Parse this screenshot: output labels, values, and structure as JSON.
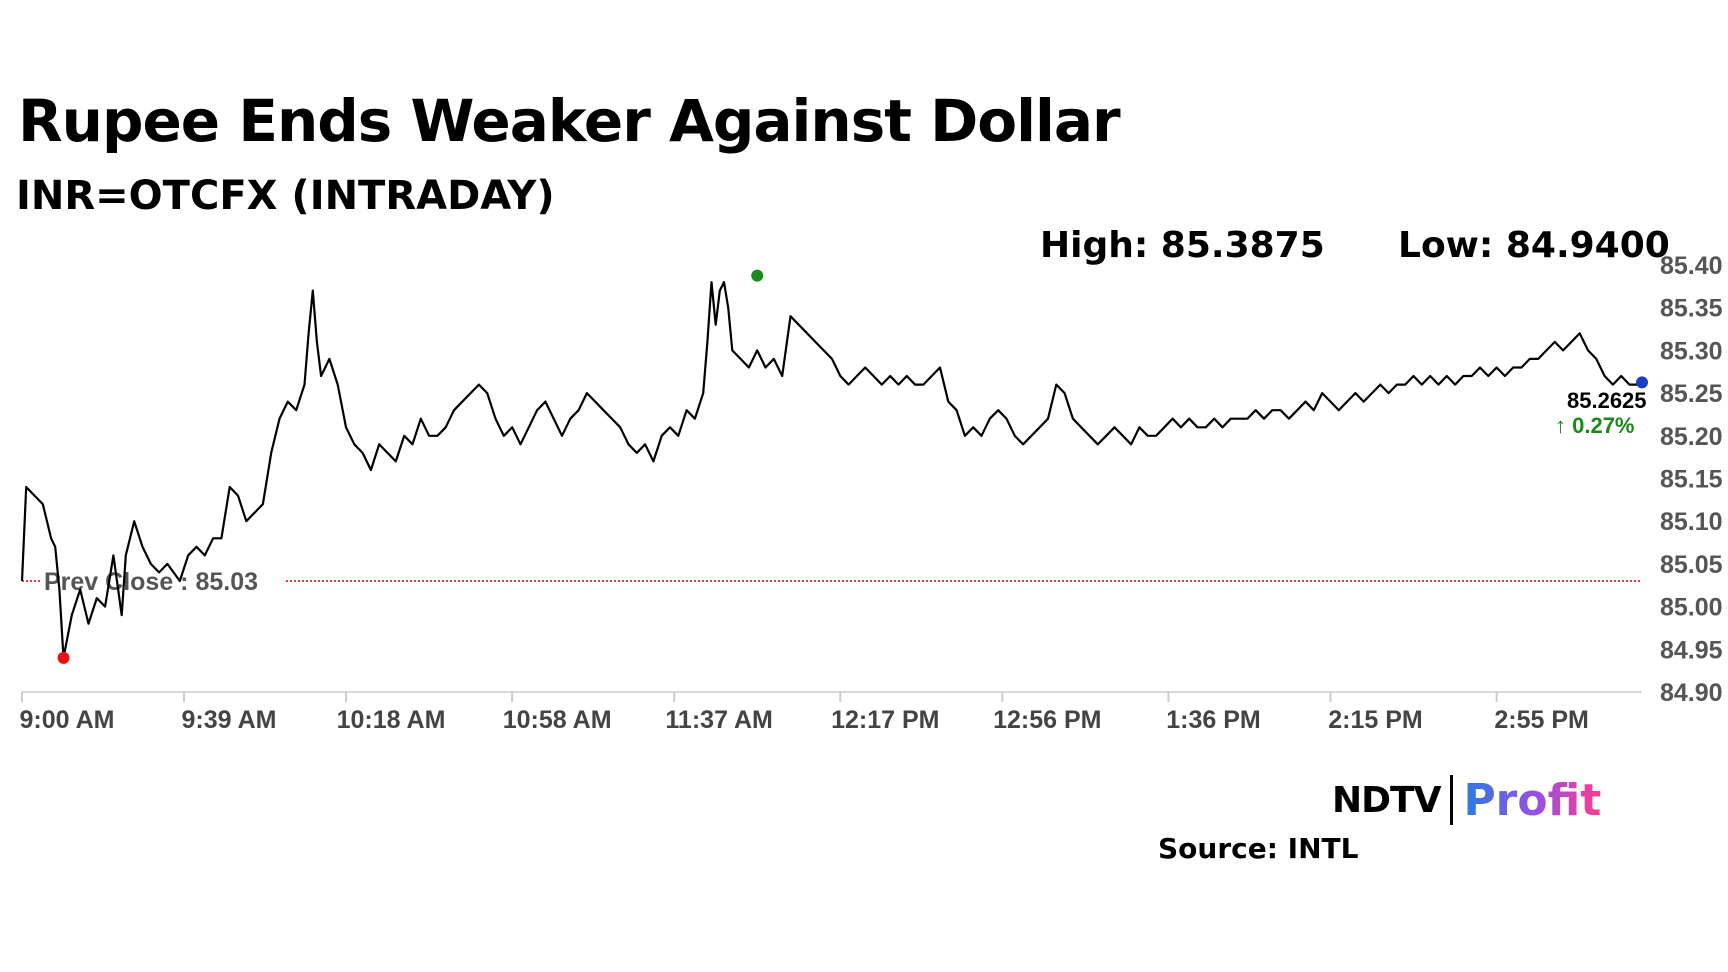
{
  "header": {
    "title": "Rupee Ends Weaker Against Dollar",
    "subtitle": "INR=OTCFX (INTRADAY)",
    "high_label": "High: 85.3875",
    "low_label": "Low: 84.9400"
  },
  "chart_data": {
    "type": "line",
    "title": "Rupee Ends Weaker Against Dollar",
    "subtitle": "INR=OTCFX (INTRADAY)",
    "ylim": [
      84.9,
      85.4
    ],
    "y_ticks": [
      "85.40",
      "85.35",
      "85.30",
      "85.25",
      "85.20",
      "85.15",
      "85.10",
      "85.05",
      "85.00",
      "84.95",
      "84.90"
    ],
    "x_ticks": [
      "9:00 AM",
      "9:39 AM",
      "10:18 AM",
      "10:58 AM",
      "11:37 AM",
      "12:17 PM",
      "12:56 PM",
      "1:36 PM",
      "2:15 PM",
      "2:55 PM"
    ],
    "x_tick_minutes": [
      540,
      579,
      618,
      658,
      697,
      737,
      776,
      816,
      855,
      895
    ],
    "xlim_minutes": [
      540,
      930
    ],
    "prev_close": {
      "label": "Prev Close : 85.03",
      "value": 85.03,
      "color": "#cc0000"
    },
    "high": {
      "label": "High: 85.3875",
      "value": 85.3875,
      "minute": 717,
      "color": "#1a8a1a"
    },
    "low": {
      "label": "Low: 84.9400",
      "value": 84.94,
      "minute": 550,
      "color": "#ee1111"
    },
    "last": {
      "value_label": "85.2625",
      "change_label": "↑ 0.27%",
      "value": 85.2625,
      "minute": 930,
      "change_color": "#1a8a1a",
      "dot_color": "#1a3fc4"
    },
    "series": [
      {
        "color": "#000000",
        "points": [
          [
            540,
            85.03
          ],
          [
            541,
            85.14
          ],
          [
            543,
            85.13
          ],
          [
            545,
            85.12
          ],
          [
            547,
            85.08
          ],
          [
            548,
            85.07
          ],
          [
            549,
            85.02
          ],
          [
            550,
            84.94
          ],
          [
            552,
            84.99
          ],
          [
            554,
            85.02
          ],
          [
            556,
            84.98
          ],
          [
            558,
            85.01
          ],
          [
            560,
            85.0
          ],
          [
            562,
            85.06
          ],
          [
            564,
            84.99
          ],
          [
            565,
            85.06
          ],
          [
            567,
            85.1
          ],
          [
            569,
            85.07
          ],
          [
            571,
            85.05
          ],
          [
            573,
            85.04
          ],
          [
            575,
            85.05
          ],
          [
            578,
            85.03
          ],
          [
            580,
            85.06
          ],
          [
            582,
            85.07
          ],
          [
            584,
            85.06
          ],
          [
            586,
            85.08
          ],
          [
            588,
            85.08
          ],
          [
            590,
            85.14
          ],
          [
            592,
            85.13
          ],
          [
            594,
            85.1
          ],
          [
            596,
            85.11
          ],
          [
            598,
            85.12
          ],
          [
            600,
            85.18
          ],
          [
            602,
            85.22
          ],
          [
            604,
            85.24
          ],
          [
            606,
            85.23
          ],
          [
            608,
            85.26
          ],
          [
            609,
            85.32
          ],
          [
            610,
            85.37
          ],
          [
            611,
            85.31
          ],
          [
            612,
            85.27
          ],
          [
            614,
            85.29
          ],
          [
            616,
            85.26
          ],
          [
            618,
            85.21
          ],
          [
            620,
            85.19
          ],
          [
            622,
            85.18
          ],
          [
            624,
            85.16
          ],
          [
            626,
            85.19
          ],
          [
            628,
            85.18
          ],
          [
            630,
            85.17
          ],
          [
            632,
            85.2
          ],
          [
            634,
            85.19
          ],
          [
            636,
            85.22
          ],
          [
            638,
            85.2
          ],
          [
            640,
            85.2
          ],
          [
            642,
            85.21
          ],
          [
            644,
            85.23
          ],
          [
            646,
            85.24
          ],
          [
            648,
            85.25
          ],
          [
            650,
            85.26
          ],
          [
            652,
            85.25
          ],
          [
            654,
            85.22
          ],
          [
            656,
            85.2
          ],
          [
            658,
            85.21
          ],
          [
            660,
            85.19
          ],
          [
            662,
            85.21
          ],
          [
            664,
            85.23
          ],
          [
            666,
            85.24
          ],
          [
            668,
            85.22
          ],
          [
            670,
            85.2
          ],
          [
            672,
            85.22
          ],
          [
            674,
            85.23
          ],
          [
            676,
            85.25
          ],
          [
            678,
            85.24
          ],
          [
            680,
            85.23
          ],
          [
            682,
            85.22
          ],
          [
            684,
            85.21
          ],
          [
            686,
            85.19
          ],
          [
            688,
            85.18
          ],
          [
            690,
            85.19
          ],
          [
            692,
            85.17
          ],
          [
            694,
            85.2
          ],
          [
            696,
            85.21
          ],
          [
            698,
            85.2
          ],
          [
            700,
            85.23
          ],
          [
            702,
            85.22
          ],
          [
            704,
            85.25
          ],
          [
            705,
            85.31
          ],
          [
            706,
            85.38
          ],
          [
            707,
            85.33
          ],
          [
            708,
            85.37
          ],
          [
            709,
            85.38
          ],
          [
            710,
            85.35
          ],
          [
            711,
            85.3
          ],
          [
            713,
            85.29
          ],
          [
            715,
            85.28
          ],
          [
            717,
            85.3
          ],
          [
            719,
            85.28
          ],
          [
            721,
            85.29
          ],
          [
            723,
            85.27
          ],
          [
            725,
            85.34
          ],
          [
            727,
            85.33
          ],
          [
            729,
            85.32
          ],
          [
            731,
            85.31
          ],
          [
            733,
            85.3
          ],
          [
            735,
            85.29
          ],
          [
            737,
            85.27
          ],
          [
            739,
            85.26
          ],
          [
            741,
            85.27
          ],
          [
            743,
            85.28
          ],
          [
            745,
            85.27
          ],
          [
            747,
            85.26
          ],
          [
            749,
            85.27
          ],
          [
            751,
            85.26
          ],
          [
            753,
            85.27
          ],
          [
            755,
            85.26
          ],
          [
            757,
            85.26
          ],
          [
            759,
            85.27
          ],
          [
            761,
            85.28
          ],
          [
            763,
            85.24
          ],
          [
            765,
            85.23
          ],
          [
            767,
            85.2
          ],
          [
            769,
            85.21
          ],
          [
            771,
            85.2
          ],
          [
            773,
            85.22
          ],
          [
            775,
            85.23
          ],
          [
            777,
            85.22
          ],
          [
            779,
            85.2
          ],
          [
            781,
            85.19
          ],
          [
            783,
            85.2
          ],
          [
            785,
            85.21
          ],
          [
            787,
            85.22
          ],
          [
            789,
            85.26
          ],
          [
            791,
            85.25
          ],
          [
            793,
            85.22
          ],
          [
            795,
            85.21
          ],
          [
            797,
            85.2
          ],
          [
            799,
            85.19
          ],
          [
            801,
            85.2
          ],
          [
            803,
            85.21
          ],
          [
            805,
            85.2
          ],
          [
            807,
            85.19
          ],
          [
            809,
            85.21
          ],
          [
            811,
            85.2
          ],
          [
            813,
            85.2
          ],
          [
            815,
            85.21
          ],
          [
            817,
            85.22
          ],
          [
            819,
            85.21
          ],
          [
            821,
            85.22
          ],
          [
            823,
            85.21
          ],
          [
            825,
            85.21
          ],
          [
            827,
            85.22
          ],
          [
            829,
            85.21
          ],
          [
            831,
            85.22
          ],
          [
            833,
            85.22
          ],
          [
            835,
            85.22
          ],
          [
            837,
            85.23
          ],
          [
            839,
            85.22
          ],
          [
            841,
            85.23
          ],
          [
            843,
            85.23
          ],
          [
            845,
            85.22
          ],
          [
            847,
            85.23
          ],
          [
            849,
            85.24
          ],
          [
            851,
            85.23
          ],
          [
            853,
            85.25
          ],
          [
            855,
            85.24
          ],
          [
            857,
            85.23
          ],
          [
            859,
            85.24
          ],
          [
            861,
            85.25
          ],
          [
            863,
            85.24
          ],
          [
            865,
            85.25
          ],
          [
            867,
            85.26
          ],
          [
            869,
            85.25
          ],
          [
            871,
            85.26
          ],
          [
            873,
            85.26
          ],
          [
            875,
            85.27
          ],
          [
            877,
            85.26
          ],
          [
            879,
            85.27
          ],
          [
            881,
            85.26
          ],
          [
            883,
            85.27
          ],
          [
            885,
            85.26
          ],
          [
            887,
            85.27
          ],
          [
            889,
            85.27
          ],
          [
            891,
            85.28
          ],
          [
            893,
            85.27
          ],
          [
            895,
            85.28
          ],
          [
            897,
            85.27
          ],
          [
            899,
            85.28
          ],
          [
            901,
            85.28
          ],
          [
            903,
            85.29
          ],
          [
            905,
            85.29
          ],
          [
            907,
            85.3
          ],
          [
            909,
            85.31
          ],
          [
            911,
            85.3
          ],
          [
            913,
            85.31
          ],
          [
            915,
            85.32
          ],
          [
            917,
            85.3
          ],
          [
            919,
            85.29
          ],
          [
            921,
            85.27
          ],
          [
            923,
            85.26
          ],
          [
            925,
            85.27
          ],
          [
            927,
            85.26
          ],
          [
            929,
            85.26
          ],
          [
            930,
            85.2625
          ]
        ]
      }
    ]
  },
  "footer": {
    "brand_ndtv": "NDTV",
    "brand_profit": "Profit",
    "source": "Source: INTL"
  }
}
